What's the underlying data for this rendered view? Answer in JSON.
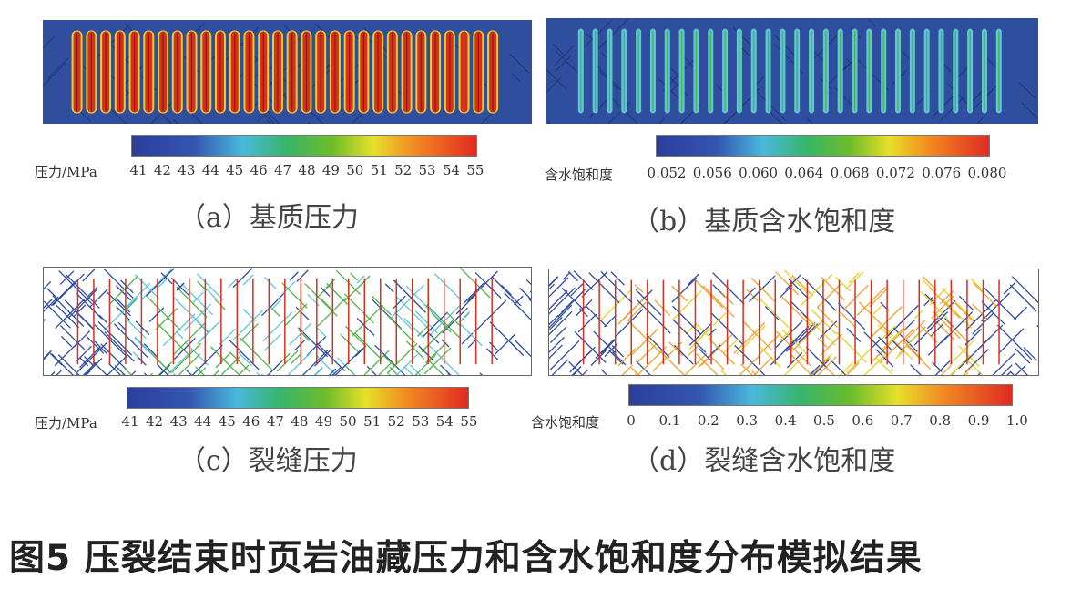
{
  "panels": [
    {
      "id": "a",
      "caption": "（a）基质压力",
      "legend_label": "压力/MPa",
      "ticks": [
        "41",
        "42",
        "43",
        "44",
        "45",
        "46",
        "47",
        "48",
        "49",
        "50",
        "51",
        "52",
        "53",
        "54",
        "55"
      ],
      "style": "matrix-pressure"
    },
    {
      "id": "b",
      "caption": "（b）基质含水饱和度",
      "legend_label": "含水饱和度",
      "ticks": [
        "0.052",
        "0.056",
        "0.060",
        "0.064",
        "0.068",
        "0.072",
        "0.076",
        "0.080"
      ],
      "style": "matrix-saturation"
    },
    {
      "id": "c",
      "caption": "（c）裂缝压力",
      "legend_label": "压力/MPa",
      "ticks": [
        "41",
        "42",
        "43",
        "44",
        "45",
        "46",
        "47",
        "48",
        "49",
        "50",
        "51",
        "52",
        "53",
        "54",
        "55"
      ],
      "style": "fracture-pressure"
    },
    {
      "id": "d",
      "caption": "（d）裂缝含水饱和度",
      "legend_label": "含水饱和度",
      "ticks": [
        "0",
        "0.1",
        "0.2",
        "0.3",
        "0.4",
        "0.5",
        "0.6",
        "0.7",
        "0.8",
        "0.9",
        "1.0"
      ],
      "style": "fracture-saturation"
    }
  ],
  "figure_title": "图5   压裂结束时页岩油藏压力和含水饱和度分布模拟结果",
  "colors": {
    "matrix_bg": "#2f4f9e",
    "red": "#d8301f",
    "yellow": "#e6d12a",
    "green": "#4db34a",
    "cyan": "#5fc6d9",
    "blue": "#2f4c9e"
  }
}
